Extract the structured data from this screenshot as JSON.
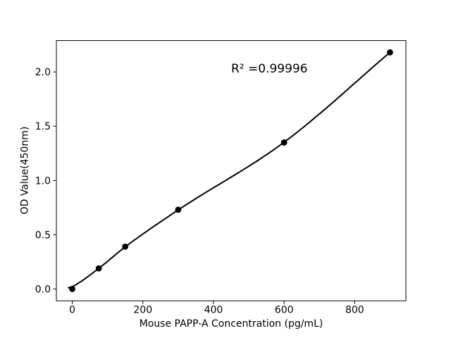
{
  "figure": {
    "background": "#ffffff",
    "foreground": "#000000"
  },
  "chart_data": {
    "type": "scatter",
    "title": "",
    "xlabel": "Mouse PAPP-A Concentration (pg/mL)",
    "ylabel": "OD Value(450nm)",
    "annotation": "R² =0.99996",
    "x": [
      0,
      75,
      150,
      300,
      600,
      900
    ],
    "y": [
      0.0,
      0.19,
      0.39,
      0.73,
      1.35,
      2.18
    ],
    "fit_line": {
      "r_squared": 0.99996,
      "x": [
        -11,
        0,
        75,
        150,
        300,
        600,
        900
      ],
      "y": [
        0.012,
        0.022,
        0.19,
        0.388,
        0.728,
        1.352,
        2.18
      ]
    },
    "xtick_values": [
      0,
      200,
      400,
      600,
      800
    ],
    "xtick_labels": [
      "0",
      "200",
      "400",
      "600",
      "800"
    ],
    "ytick_values": [
      0,
      0.5,
      1.0,
      1.5,
      2.0
    ],
    "ytick_labels": [
      "0.0",
      "0.5",
      "1.0",
      "1.5",
      "2.0"
    ],
    "xlim": [
      -45,
      945
    ],
    "ylim": [
      -0.109,
      2.289
    ],
    "grid": false,
    "legend": null,
    "marker_color": "#000000",
    "line_color": "#000000"
  }
}
